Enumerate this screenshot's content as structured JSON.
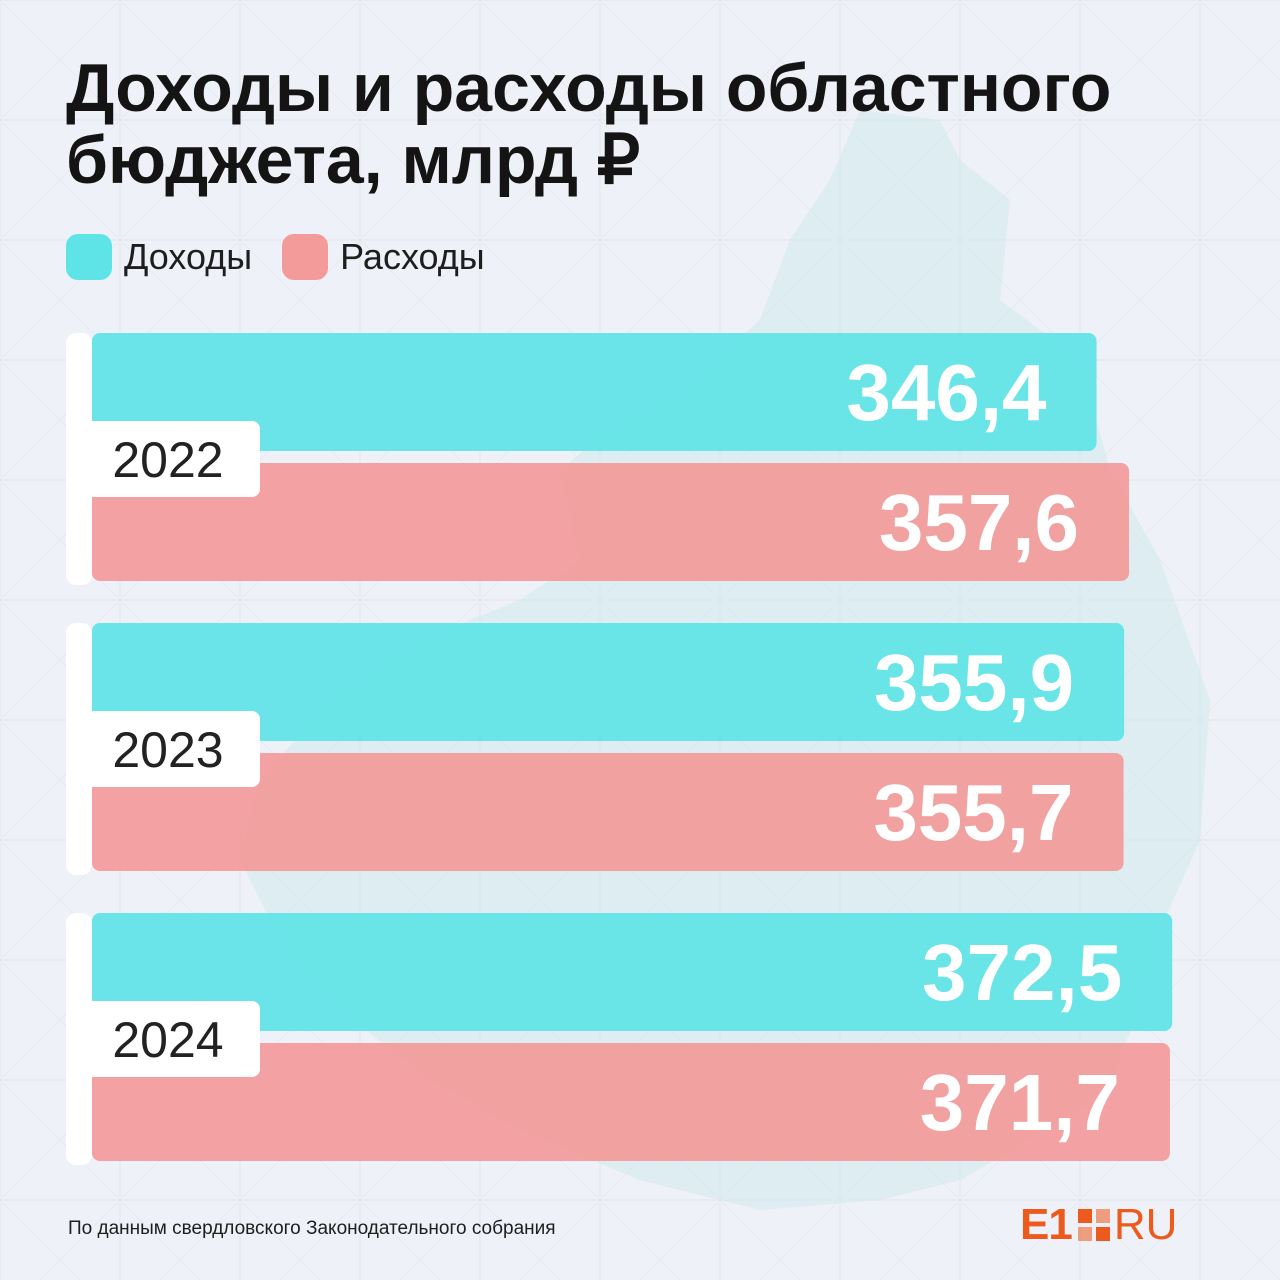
{
  "title_line1": "Доходы и расходы областного",
  "title_line2": "бюджета, млрд ₽",
  "footer": {
    "source": "По данным свердловского Законодательного собрания",
    "logo_main": "E1",
    "logo_suffix": "RU"
  },
  "colors": {
    "income": "#5ee3e6",
    "expense": "#f39a9a",
    "accent": "#ec5a1e"
  },
  "chart_data": {
    "type": "bar",
    "orientation": "horizontal",
    "categories": [
      "2022",
      "2023",
      "2024"
    ],
    "series": [
      {
        "name": "Доходы",
        "values": [
          346.4,
          355.9,
          372.5
        ],
        "labels": [
          "346,4",
          "355,9",
          "372,5"
        ]
      },
      {
        "name": "Расходы",
        "values": [
          357.6,
          355.7,
          371.7
        ],
        "labels": [
          "357,6",
          "355,7",
          "371,7"
        ]
      }
    ],
    "legend_position": "top-left",
    "grid": false
  }
}
